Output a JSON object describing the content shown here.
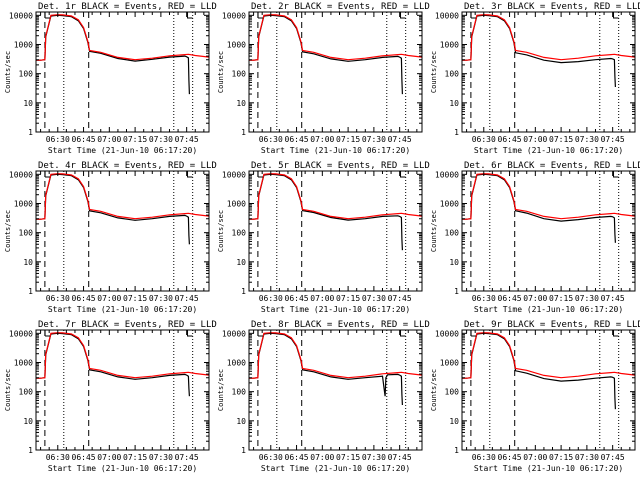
{
  "shared": {
    "ylabel": "Counts/sec",
    "xlabel": "Start Time (21-Jun-10 06:17:20)",
    "x_ticks": [
      "06:30",
      "06:45",
      "07:00",
      "07:15",
      "07:30",
      "07:45"
    ],
    "x_tick_minutes": [
      30,
      45,
      60,
      75,
      90,
      105
    ],
    "y_ticks": [
      "1",
      "10",
      "100",
      "1000",
      "10000"
    ],
    "y_tick_values": [
      1,
      10,
      100,
      1000,
      10000
    ],
    "x_range_minutes": [
      17.33,
      118
    ],
    "y_range": [
      1,
      13000
    ],
    "y_scale": "log",
    "grid": false,
    "colors": {
      "events": "#000000",
      "lld": "#ff0000",
      "axes": "#000000"
    },
    "dashed_lines_minutes": [
      22.5,
      48
    ],
    "dotted_lines_minutes": [
      33.5,
      97.5,
      108.5
    ]
  },
  "chart_data": [
    {
      "type": "line",
      "title": "Det. 1r BLACK = Events, RED = LLD",
      "y_scale": "log",
      "series": [
        {
          "name": "BLACK = Events",
          "color": "#000000",
          "x": [
            17.33,
            20,
            22.5,
            23,
            26,
            30,
            33,
            38,
            42,
            45,
            47.5,
            48.5,
            55,
            65,
            75,
            85,
            95,
            104,
            105,
            106,
            106.3,
            106.6
          ],
          "y": [
            290,
            290,
            300,
            1800,
            9500,
            10000,
            9800,
            9000,
            6500,
            3500,
            1200,
            580,
            500,
            330,
            270,
            310,
            370,
            400,
            380,
            350,
            60,
            20
          ]
        },
        {
          "name": "RED = LLD",
          "color": "#ff0000",
          "x": [
            17.33,
            20,
            22.5,
            23,
            26,
            30,
            33,
            38,
            42,
            45,
            47.5,
            48.5,
            55,
            65,
            75,
            85,
            95,
            104,
            106,
            110,
            118
          ],
          "y": [
            290,
            290,
            300,
            1900,
            10000,
            10500,
            10300,
            9500,
            7000,
            3800,
            1300,
            620,
            540,
            360,
            300,
            340,
            410,
            450,
            460,
            420,
            370
          ]
        }
      ]
    },
    {
      "type": "line",
      "title": "Det. 2r BLACK = Events, RED = LLD",
      "y_scale": "log",
      "series": [
        {
          "name": "BLACK = Events",
          "color": "#000000",
          "x": [
            17.33,
            20,
            22.5,
            23,
            26,
            30,
            33,
            38,
            42,
            45,
            47.5,
            48.5,
            55,
            65,
            75,
            85,
            95,
            104,
            105,
            106,
            106.3,
            106.6
          ],
          "y": [
            290,
            290,
            300,
            1800,
            9500,
            10000,
            9800,
            9000,
            6500,
            3500,
            1200,
            560,
            480,
            320,
            265,
            300,
            360,
            390,
            370,
            340,
            60,
            20
          ]
        },
        {
          "name": "RED = LLD",
          "color": "#ff0000",
          "x": [
            17.33,
            20,
            22.5,
            23,
            26,
            30,
            33,
            38,
            42,
            45,
            47.5,
            48.5,
            55,
            65,
            75,
            85,
            95,
            104,
            106,
            110,
            118
          ],
          "y": [
            290,
            290,
            300,
            1900,
            10000,
            10500,
            10300,
            9500,
            7000,
            3800,
            1300,
            620,
            540,
            360,
            300,
            340,
            410,
            450,
            460,
            420,
            370
          ]
        }
      ]
    },
    {
      "type": "line",
      "title": "Det. 3r BLACK = Events, RED = LLD",
      "y_scale": "log",
      "series": [
        {
          "name": "BLACK = Events",
          "color": "#000000",
          "x": [
            17.33,
            20,
            22.5,
            23,
            26,
            30,
            33,
            38,
            42,
            45,
            47.5,
            48.5,
            55,
            65,
            75,
            85,
            95,
            104,
            105,
            106,
            106.3,
            106.6
          ],
          "y": [
            290,
            290,
            300,
            1800,
            9500,
            10000,
            9800,
            9000,
            6500,
            3500,
            1200,
            520,
            440,
            290,
            240,
            260,
            300,
            330,
            320,
            300,
            80,
            35
          ]
        },
        {
          "name": "RED = LLD",
          "color": "#ff0000",
          "x": [
            17.33,
            20,
            22.5,
            23,
            26,
            30,
            33,
            38,
            42,
            45,
            47.5,
            48.5,
            55,
            65,
            75,
            85,
            95,
            104,
            106,
            110,
            118
          ],
          "y": [
            290,
            290,
            300,
            1900,
            10000,
            10500,
            10300,
            9500,
            7000,
            3800,
            1300,
            620,
            540,
            360,
            300,
            340,
            410,
            450,
            460,
            420,
            370
          ]
        }
      ]
    },
    {
      "type": "line",
      "title": "Det. 4r BLACK = Events, RED = LLD",
      "y_scale": "log",
      "series": [
        {
          "name": "BLACK = Events",
          "color": "#000000",
          "x": [
            17.33,
            20,
            22.5,
            23,
            26,
            30,
            33,
            38,
            42,
            45,
            47.5,
            48.5,
            55,
            65,
            75,
            85,
            95,
            104,
            105,
            106,
            106.3,
            106.6
          ],
          "y": [
            290,
            290,
            300,
            1800,
            9500,
            10000,
            9800,
            9000,
            6500,
            3500,
            1200,
            560,
            480,
            320,
            265,
            300,
            360,
            390,
            370,
            340,
            80,
            40
          ]
        },
        {
          "name": "RED = LLD",
          "color": "#ff0000",
          "x": [
            17.33,
            20,
            22.5,
            23,
            26,
            30,
            33,
            38,
            42,
            45,
            47.5,
            48.5,
            55,
            65,
            75,
            85,
            95,
            104,
            106,
            110,
            118
          ],
          "y": [
            290,
            290,
            300,
            1900,
            10000,
            10500,
            10300,
            9500,
            7000,
            3800,
            1300,
            620,
            540,
            360,
            300,
            340,
            410,
            450,
            460,
            420,
            370
          ]
        }
      ]
    },
    {
      "type": "line",
      "title": "Det. 5r BLACK = Events, RED = LLD",
      "y_scale": "log",
      "series": [
        {
          "name": "BLACK = Events",
          "color": "#000000",
          "x": [
            17.33,
            20,
            22.5,
            23,
            26,
            30,
            33,
            38,
            42,
            45,
            47.5,
            48.5,
            55,
            65,
            75,
            85,
            95,
            104,
            105,
            106,
            106.3,
            106.6
          ],
          "y": [
            290,
            290,
            300,
            1800,
            9500,
            10000,
            9800,
            9000,
            6500,
            3500,
            1200,
            570,
            490,
            330,
            270,
            300,
            360,
            380,
            360,
            330,
            60,
            25
          ]
        },
        {
          "name": "RED = LLD",
          "color": "#ff0000",
          "x": [
            17.33,
            20,
            22.5,
            23,
            26,
            30,
            33,
            38,
            42,
            45,
            47.5,
            48.5,
            55,
            65,
            75,
            85,
            95,
            104,
            106,
            110,
            118
          ],
          "y": [
            290,
            290,
            300,
            1900,
            10000,
            10500,
            10300,
            9500,
            7000,
            3800,
            1300,
            620,
            540,
            360,
            300,
            340,
            410,
            450,
            460,
            420,
            370
          ]
        }
      ]
    },
    {
      "type": "line",
      "title": "Det. 6r BLACK = Events, RED = LLD",
      "y_scale": "log",
      "series": [
        {
          "name": "BLACK = Events",
          "color": "#000000",
          "x": [
            17.33,
            20,
            22.5,
            23,
            26,
            30,
            33,
            38,
            42,
            45,
            47.5,
            48.5,
            55,
            65,
            75,
            85,
            95,
            104,
            105,
            106,
            106.3,
            106.6
          ],
          "y": [
            290,
            290,
            300,
            1800,
            9500,
            10000,
            9800,
            9000,
            6500,
            3500,
            1200,
            560,
            470,
            300,
            250,
            280,
            330,
            360,
            350,
            320,
            90,
            45
          ]
        },
        {
          "name": "RED = LLD",
          "color": "#ff0000",
          "x": [
            17.33,
            20,
            22.5,
            23,
            26,
            30,
            33,
            38,
            42,
            45,
            47.5,
            48.5,
            55,
            65,
            75,
            85,
            95,
            104,
            106,
            110,
            118
          ],
          "y": [
            290,
            290,
            300,
            1900,
            10000,
            10500,
            10300,
            9500,
            7000,
            3800,
            1300,
            620,
            540,
            360,
            300,
            340,
            410,
            450,
            460,
            420,
            370
          ]
        }
      ]
    },
    {
      "type": "line",
      "title": "Det. 7r BLACK = Events, RED = LLD",
      "y_scale": "log",
      "series": [
        {
          "name": "BLACK = Events",
          "color": "#000000",
          "x": [
            17.33,
            20,
            22.5,
            23,
            26,
            30,
            33,
            38,
            42,
            45,
            47.5,
            48.5,
            55,
            65,
            75,
            85,
            95,
            104,
            105,
            106,
            106.3,
            106.6
          ],
          "y": [
            290,
            290,
            300,
            1800,
            9500,
            10000,
            9800,
            9000,
            6500,
            3500,
            1200,
            560,
            480,
            320,
            265,
            300,
            360,
            390,
            370,
            340,
            130,
            70
          ]
        },
        {
          "name": "RED = LLD",
          "color": "#ff0000",
          "x": [
            17.33,
            20,
            22.5,
            23,
            26,
            30,
            33,
            38,
            42,
            45,
            47.5,
            48.5,
            55,
            65,
            75,
            85,
            95,
            104,
            106,
            110,
            118
          ],
          "y": [
            290,
            290,
            300,
            1900,
            10000,
            10500,
            10300,
            9500,
            7000,
            3800,
            1300,
            620,
            540,
            360,
            300,
            340,
            410,
            450,
            460,
            420,
            370
          ]
        }
      ]
    },
    {
      "type": "line",
      "title": "Det. 8r BLACK = Events, RED = LLD",
      "y_scale": "log",
      "series": [
        {
          "name": "BLACK = Events",
          "color": "#000000",
          "x": [
            17.33,
            20,
            22.5,
            23,
            26,
            30,
            33,
            38,
            42,
            45,
            47.5,
            48.5,
            55,
            65,
            75,
            85,
            95,
            96,
            96.5,
            97,
            98,
            104,
            105,
            106,
            106.3,
            106.6
          ],
          "y": [
            290,
            290,
            300,
            1800,
            9500,
            10000,
            9800,
            9000,
            6500,
            3500,
            1200,
            560,
            480,
            320,
            265,
            300,
            340,
            120,
            70,
            300,
            380,
            390,
            370,
            340,
            80,
            35
          ]
        },
        {
          "name": "RED = LLD",
          "color": "#ff0000",
          "x": [
            17.33,
            20,
            22.5,
            23,
            26,
            30,
            33,
            38,
            42,
            45,
            47.5,
            48.5,
            55,
            65,
            75,
            85,
            95,
            104,
            106,
            110,
            118
          ],
          "y": [
            290,
            290,
            300,
            1900,
            10000,
            10500,
            10300,
            9500,
            7000,
            3800,
            1300,
            620,
            540,
            360,
            300,
            340,
            410,
            450,
            460,
            420,
            370
          ]
        }
      ]
    },
    {
      "type": "line",
      "title": "Det. 9r BLACK = Events, RED = LLD",
      "y_scale": "log",
      "series": [
        {
          "name": "BLACK = Events",
          "color": "#000000",
          "x": [
            17.33,
            20,
            22.5,
            23,
            26,
            30,
            33,
            38,
            42,
            45,
            47.5,
            48.5,
            55,
            65,
            75,
            85,
            95,
            104,
            105,
            106,
            106.3,
            106.6
          ],
          "y": [
            290,
            290,
            300,
            1800,
            9500,
            10000,
            9800,
            9000,
            6500,
            3500,
            1200,
            520,
            430,
            280,
            230,
            250,
            290,
            320,
            310,
            290,
            60,
            25
          ]
        },
        {
          "name": "RED = LLD",
          "color": "#ff0000",
          "x": [
            17.33,
            20,
            22.5,
            23,
            26,
            30,
            33,
            38,
            42,
            45,
            47.5,
            48.5,
            55,
            65,
            75,
            85,
            95,
            104,
            106,
            110,
            118
          ],
          "y": [
            290,
            290,
            300,
            1900,
            10000,
            10500,
            10300,
            9500,
            7000,
            3800,
            1300,
            620,
            540,
            360,
            300,
            340,
            410,
            450,
            460,
            420,
            370
          ]
        }
      ]
    }
  ]
}
